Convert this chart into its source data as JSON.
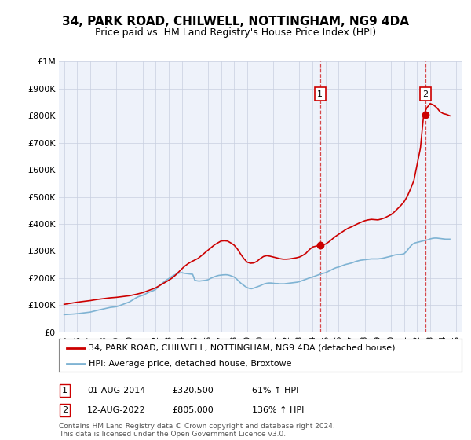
{
  "title": "34, PARK ROAD, CHILWELL, NOTTINGHAM, NG9 4DA",
  "subtitle": "Price paid vs. HM Land Registry's House Price Index (HPI)",
  "legend_line1": "34, PARK ROAD, CHILWELL, NOTTINGHAM, NG9 4DA (detached house)",
  "legend_line2": "HPI: Average price, detached house, Broxtowe",
  "annotation1_label": "1",
  "annotation1_date": "01-AUG-2014",
  "annotation1_price": "£320,500",
  "annotation1_hpi": "61% ↑ HPI",
  "annotation2_label": "2",
  "annotation2_date": "12-AUG-2022",
  "annotation2_price": "£805,000",
  "annotation2_hpi": "136% ↑ HPI",
  "footer": "Contains HM Land Registry data © Crown copyright and database right 2024.\nThis data is licensed under the Open Government Licence v3.0.",
  "red_color": "#cc0000",
  "blue_color": "#7fb3d3",
  "annotation_box_color": "#cc0000",
  "vline_color": "#cc0000",
  "background_color": "#ffffff",
  "plot_bg_color": "#eef2fa",
  "grid_color": "#c8cfe0",
  "ylim": [
    0,
    1000000
  ],
  "yticks": [
    0,
    100000,
    200000,
    300000,
    400000,
    500000,
    600000,
    700000,
    800000,
    900000,
    1000000
  ],
  "ytick_labels": [
    "£0",
    "£100K",
    "£200K",
    "£300K",
    "£400K",
    "£500K",
    "£600K",
    "£700K",
    "£800K",
    "£900K",
    "£1M"
  ],
  "hpi_x": [
    1995.0,
    1995.08,
    1995.17,
    1995.25,
    1995.33,
    1995.42,
    1995.5,
    1995.58,
    1995.67,
    1995.75,
    1995.83,
    1995.92,
    1996.0,
    1996.08,
    1996.17,
    1996.25,
    1996.33,
    1996.42,
    1996.5,
    1996.58,
    1996.67,
    1996.75,
    1996.83,
    1996.92,
    1997.0,
    1997.08,
    1997.17,
    1997.25,
    1997.33,
    1997.42,
    1997.5,
    1997.58,
    1997.67,
    1997.75,
    1997.83,
    1997.92,
    1998.0,
    1998.17,
    1998.33,
    1998.5,
    1998.67,
    1998.83,
    1999.0,
    1999.17,
    1999.33,
    1999.5,
    1999.67,
    1999.83,
    2000.0,
    2000.17,
    2000.33,
    2000.5,
    2000.67,
    2000.83,
    2001.0,
    2001.17,
    2001.33,
    2001.5,
    2001.67,
    2001.83,
    2002.0,
    2002.17,
    2002.33,
    2002.5,
    2002.67,
    2002.83,
    2003.0,
    2003.17,
    2003.33,
    2003.5,
    2003.67,
    2003.83,
    2004.0,
    2004.17,
    2004.33,
    2004.5,
    2004.67,
    2004.83,
    2005.0,
    2005.17,
    2005.33,
    2005.5,
    2005.67,
    2005.83,
    2006.0,
    2006.17,
    2006.33,
    2006.5,
    2006.67,
    2006.83,
    2007.0,
    2007.17,
    2007.33,
    2007.5,
    2007.67,
    2007.83,
    2008.0,
    2008.17,
    2008.33,
    2008.5,
    2008.67,
    2008.83,
    2009.0,
    2009.17,
    2009.33,
    2009.5,
    2009.67,
    2009.83,
    2010.0,
    2010.17,
    2010.33,
    2010.5,
    2010.67,
    2010.83,
    2011.0,
    2011.17,
    2011.33,
    2011.5,
    2011.67,
    2011.83,
    2012.0,
    2012.17,
    2012.33,
    2012.5,
    2012.67,
    2012.83,
    2013.0,
    2013.17,
    2013.33,
    2013.5,
    2013.67,
    2013.83,
    2014.0,
    2014.17,
    2014.33,
    2014.5,
    2014.67,
    2014.83,
    2015.0,
    2015.17,
    2015.33,
    2015.5,
    2015.67,
    2015.83,
    2016.0,
    2016.17,
    2016.33,
    2016.5,
    2016.67,
    2016.83,
    2017.0,
    2017.17,
    2017.33,
    2017.5,
    2017.67,
    2017.83,
    2018.0,
    2018.17,
    2018.33,
    2018.5,
    2018.67,
    2018.83,
    2019.0,
    2019.17,
    2019.33,
    2019.5,
    2019.67,
    2019.83,
    2020.0,
    2020.17,
    2020.33,
    2020.5,
    2020.67,
    2020.83,
    2021.0,
    2021.17,
    2021.33,
    2021.5,
    2021.67,
    2021.83,
    2022.0,
    2022.17,
    2022.33,
    2022.5,
    2022.67,
    2022.83,
    2023.0,
    2023.17,
    2023.33,
    2023.5,
    2023.67,
    2023.83,
    2024.0,
    2024.17,
    2024.33,
    2024.5
  ],
  "hpi_y": [
    65000,
    65500,
    65800,
    66000,
    66300,
    66500,
    66700,
    67000,
    67200,
    67500,
    67800,
    68000,
    68500,
    69000,
    69500,
    70000,
    70500,
    71000,
    71500,
    72000,
    72500,
    73000,
    73500,
    74000,
    74500,
    75500,
    76500,
    77500,
    78500,
    79500,
    80500,
    81500,
    82500,
    83500,
    84500,
    85500,
    86000,
    88000,
    90000,
    91500,
    92500,
    93500,
    94500,
    97000,
    100000,
    103000,
    106000,
    109000,
    112000,
    117000,
    122000,
    127000,
    131000,
    134000,
    136000,
    140000,
    144000,
    148000,
    151000,
    154000,
    158000,
    166000,
    174000,
    181000,
    187000,
    193000,
    198000,
    204000,
    209000,
    213000,
    216000,
    219000,
    220000,
    218000,
    217000,
    216000,
    215000,
    214000,
    192000,
    190000,
    189000,
    190000,
    191000,
    192000,
    194000,
    198000,
    202000,
    205000,
    208000,
    210000,
    211000,
    212000,
    212500,
    212000,
    210000,
    207000,
    204000,
    198000,
    190000,
    182000,
    176000,
    170000,
    165000,
    162000,
    161000,
    163000,
    166000,
    169000,
    172000,
    176000,
    179000,
    181000,
    182000,
    182000,
    181000,
    180000,
    180000,
    179000,
    179000,
    179000,
    180000,
    181000,
    182000,
    183000,
    184000,
    185000,
    187000,
    190000,
    193000,
    196000,
    199000,
    202000,
    204000,
    207000,
    210000,
    213000,
    216000,
    218000,
    220000,
    224000,
    228000,
    232000,
    236000,
    239000,
    241000,
    244000,
    247000,
    250000,
    252000,
    254000,
    256000,
    259000,
    262000,
    264000,
    266000,
    267000,
    268000,
    269000,
    270000,
    271000,
    271000,
    271000,
    271000,
    272000,
    273000,
    275000,
    277000,
    279000,
    281000,
    284000,
    286000,
    287000,
    287000,
    288000,
    290000,
    298000,
    308000,
    318000,
    326000,
    330000,
    332000,
    334000,
    336000,
    338000,
    340000,
    342000,
    345000,
    347000,
    348000,
    348000,
    347000,
    346000,
    345000,
    344000,
    344000,
    344000
  ],
  "red_x": [
    1995.0,
    1995.5,
    1996.0,
    1996.5,
    1997.0,
    1997.5,
    1998.0,
    1998.5,
    1999.0,
    1999.5,
    2000.0,
    2000.5,
    2001.0,
    2001.5,
    2002.0,
    2002.5,
    2003.0,
    2003.25,
    2003.5,
    2003.75,
    2004.0,
    2004.25,
    2004.5,
    2004.75,
    2005.0,
    2005.25,
    2005.5,
    2005.75,
    2006.0,
    2006.25,
    2006.5,
    2006.75,
    2007.0,
    2007.25,
    2007.5,
    2007.75,
    2008.0,
    2008.25,
    2008.5,
    2008.75,
    2009.0,
    2009.25,
    2009.5,
    2009.75,
    2010.0,
    2010.25,
    2010.5,
    2010.75,
    2011.0,
    2011.25,
    2011.5,
    2011.75,
    2012.0,
    2012.25,
    2012.5,
    2012.75,
    2013.0,
    2013.25,
    2013.5,
    2013.75,
    2014.0,
    2014.25,
    2014.5,
    2014.75,
    2015.0,
    2015.25,
    2015.5,
    2015.75,
    2016.0,
    2016.25,
    2016.5,
    2016.75,
    2017.0,
    2017.25,
    2017.5,
    2017.75,
    2018.0,
    2018.25,
    2018.5,
    2018.75,
    2019.0,
    2019.25,
    2019.5,
    2019.75,
    2020.0,
    2020.25,
    2020.5,
    2020.75,
    2021.0,
    2021.25,
    2021.5,
    2021.75,
    2022.0,
    2022.25,
    2022.5,
    2022.75,
    2023.0,
    2023.25,
    2023.5,
    2023.75,
    2024.0,
    2024.25,
    2024.5
  ],
  "red_y": [
    103000,
    107000,
    111000,
    114000,
    117000,
    121000,
    124000,
    127000,
    129000,
    132000,
    135000,
    140000,
    146000,
    155000,
    164000,
    178000,
    192000,
    200000,
    210000,
    222000,
    234000,
    245000,
    254000,
    261000,
    267000,
    273000,
    283000,
    293000,
    303000,
    313000,
    323000,
    330000,
    337000,
    338000,
    337000,
    330000,
    322000,
    308000,
    289000,
    272000,
    259000,
    255000,
    256000,
    262000,
    272000,
    280000,
    283000,
    281000,
    278000,
    275000,
    272000,
    270000,
    270000,
    271000,
    273000,
    275000,
    278000,
    284000,
    292000,
    305000,
    315000,
    318000,
    320500,
    322000,
    326000,
    334000,
    344000,
    354000,
    362000,
    370000,
    378000,
    385000,
    390000,
    396000,
    402000,
    407000,
    412000,
    415000,
    417000,
    416000,
    415000,
    418000,
    422000,
    428000,
    434000,
    444000,
    456000,
    468000,
    482000,
    502000,
    530000,
    560000,
    620000,
    680000,
    805000,
    830000,
    845000,
    840000,
    830000,
    815000,
    808000,
    805000,
    800000
  ],
  "sale1_x": 2014.58,
  "sale1_y": 320500,
  "sale2_x": 2022.62,
  "sale2_y": 805000,
  "xtick_years": [
    1995,
    1996,
    1997,
    1998,
    1999,
    2000,
    2001,
    2002,
    2003,
    2004,
    2005,
    2006,
    2007,
    2008,
    2009,
    2010,
    2011,
    2012,
    2013,
    2014,
    2015,
    2016,
    2017,
    2018,
    2019,
    2020,
    2021,
    2022,
    2023,
    2024,
    2025
  ]
}
